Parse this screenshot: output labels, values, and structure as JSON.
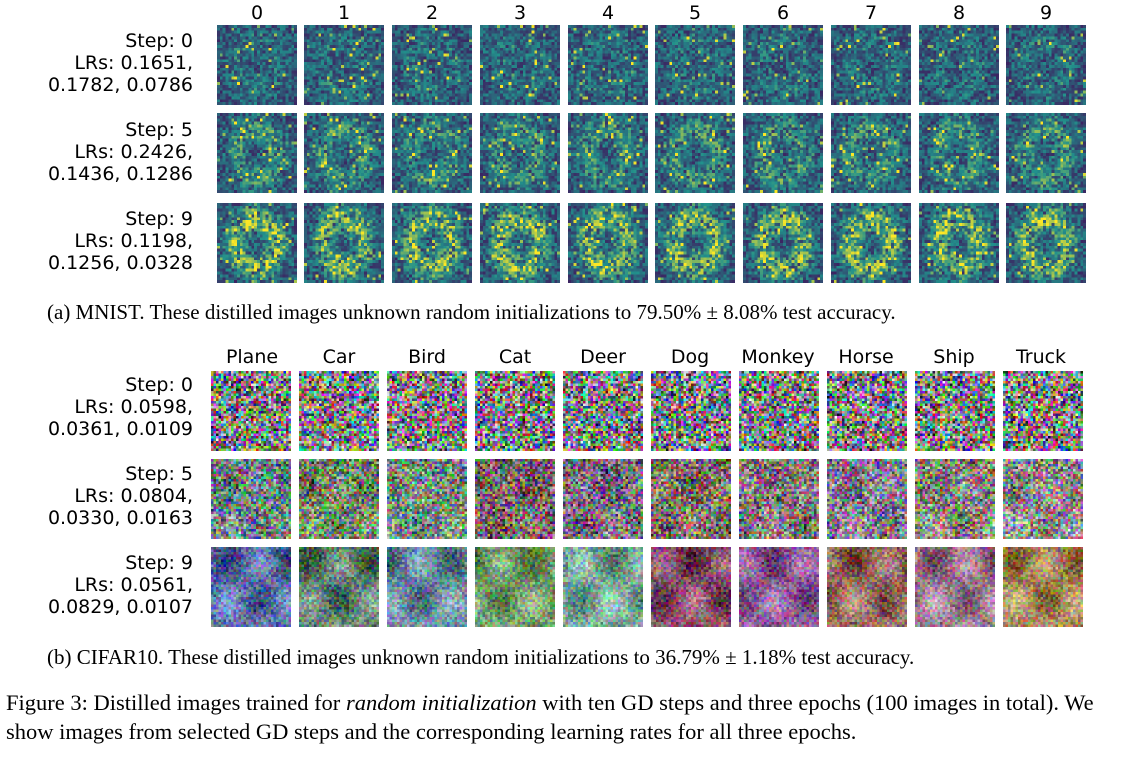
{
  "mnist": {
    "column_labels": [
      "0",
      "1",
      "2",
      "3",
      "4",
      "5",
      "6",
      "7",
      "8",
      "9"
    ],
    "rows": [
      {
        "step": "Step: 0",
        "lrs": "LRs: 0.1651,",
        "lrs2": "0.1782, 0.0786"
      },
      {
        "step": "Step: 5",
        "lrs": "LRs: 0.2426,",
        "lrs2": "0.1436, 0.1286"
      },
      {
        "step": "Step: 9",
        "lrs": "LRs: 0.1198,",
        "lrs2": "0.1256, 0.0328"
      }
    ],
    "caption": "(a) MNIST. These distilled images unknown random initializations to 79.50% ± 8.08% test accuracy."
  },
  "cifar": {
    "column_labels": [
      "Plane",
      "Car",
      "Bird",
      "Cat",
      "Deer",
      "Dog",
      "Monkey",
      "Horse",
      "Ship",
      "Truck"
    ],
    "rows": [
      {
        "step": "Step: 0",
        "lrs": "LRs: 0.0598,",
        "lrs2": "0.0361, 0.0109"
      },
      {
        "step": "Step: 5",
        "lrs": "LRs: 0.0804,",
        "lrs2": "0.0330, 0.0163"
      },
      {
        "step": "Step: 9",
        "lrs": "LRs: 0.0561,",
        "lrs2": "0.0829, 0.0107"
      }
    ],
    "caption": "(b) CIFAR10. These distilled images unknown random initializations to 36.79% ± 1.18% test accuracy."
  },
  "figure_caption": {
    "prefix": "Figure 3: Distilled images trained for ",
    "emphasis": "random initialization",
    "suffix": " with ten GD steps and three epochs (100 images in total). We show images from selected GD steps and the corresponding learning rates for all three epochs."
  },
  "colors": {
    "viridis_low": "#440154",
    "viridis_mid": "#21918c",
    "viridis_high": "#fde725"
  }
}
